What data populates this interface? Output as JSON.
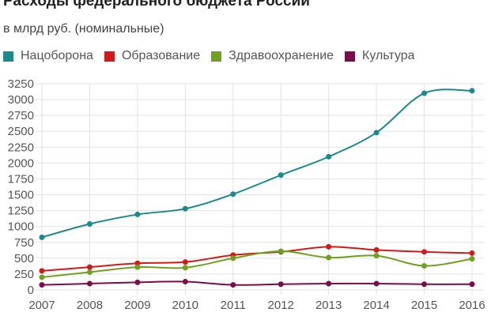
{
  "chart_data": {
    "type": "line",
    "title": "Расходы федерального бюджета России",
    "subtitle": "в млрд руб. (номинальные)",
    "xlabel": "",
    "ylabel": "",
    "x": [
      "2007",
      "2008",
      "2009",
      "2010",
      "2011",
      "2012",
      "2013",
      "2014",
      "2015",
      "2016"
    ],
    "ylim": [
      0,
      3250
    ],
    "yticks": [
      "0",
      "250",
      "500",
      "750",
      "1000",
      "1250",
      "1500",
      "1750",
      "2000",
      "2250",
      "2500",
      "2750",
      "3000",
      "3250"
    ],
    "grid": true,
    "legend_position": "top-left",
    "series": [
      {
        "name": "Нацоборона",
        "color": "#1a8a8a",
        "values": [
          830,
          1040,
          1190,
          1280,
          1510,
          1810,
          2100,
          2480,
          3100,
          3140
        ]
      },
      {
        "name": "Образование",
        "color": "#d11a1a",
        "values": [
          300,
          360,
          420,
          440,
          550,
          600,
          680,
          630,
          600,
          580
        ]
      },
      {
        "name": "Здравоохранение",
        "color": "#6fa01e",
        "values": [
          200,
          280,
          360,
          350,
          500,
          610,
          510,
          540,
          380,
          490
        ]
      },
      {
        "name": "Культура",
        "color": "#7a0d4a",
        "values": [
          80,
          100,
          120,
          130,
          80,
          90,
          100,
          100,
          90,
          90
        ]
      }
    ]
  }
}
